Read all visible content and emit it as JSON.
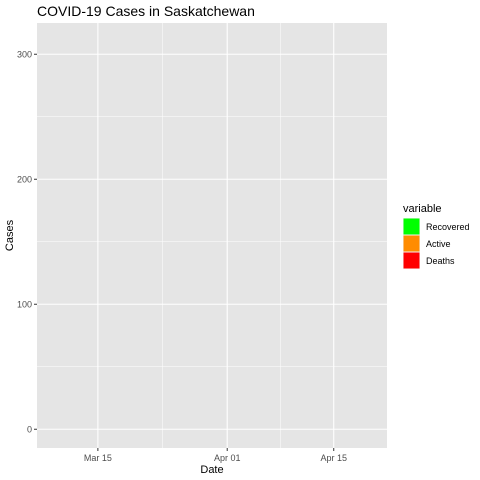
{
  "chart_data": {
    "type": "area",
    "title": "COVID-19 Cases in Saskatchewan",
    "xlabel": "Date",
    "ylabel": "Cases",
    "x_ticks": [
      "Mar 15",
      "Apr 01",
      "Apr 15"
    ],
    "y_ticks": [
      0,
      100,
      200,
      300
    ],
    "ylim": [
      -15,
      325
    ],
    "xlim": [
      "2020-03-07",
      "2020-04-22"
    ],
    "grid": true,
    "legend": {
      "title": "variable",
      "placement": "right",
      "entries": [
        {
          "label": "Recovered",
          "color": "#00FF00"
        },
        {
          "label": "Active",
          "color": "#FF8C00"
        },
        {
          "label": "Deaths",
          "color": "#FF0000"
        }
      ]
    },
    "series": []
  },
  "colors": {
    "panel_background": "#E5E5E5",
    "grid_line": "#FFFFFF",
    "tick_text": "#4D4D4D"
  }
}
